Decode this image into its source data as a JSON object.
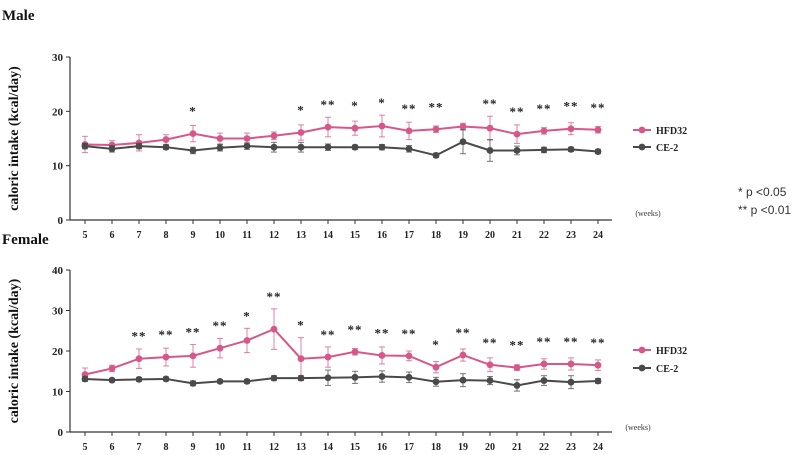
{
  "significance_legend": {
    "single": "*  p <0.05",
    "double": "** p <0.01"
  },
  "colors": {
    "hfd": "#d6578a",
    "ce": "#4a4a4a",
    "axis": "#333333"
  },
  "chart_data": [
    {
      "type": "line",
      "title": "Male",
      "ylabel": "caloric intake (kcal/day)",
      "xlabel": "(weeks)",
      "ylim": [
        0,
        30
      ],
      "yticks": [
        0,
        10,
        20,
        30
      ],
      "categories": [
        "5",
        "6",
        "7",
        "8",
        "9",
        "10",
        "11",
        "12",
        "13",
        "14",
        "15",
        "16",
        "17",
        "18",
        "19",
        "20",
        "21",
        "22",
        "23",
        "24"
      ],
      "significance": [
        "",
        "",
        "",
        "",
        "*",
        "",
        "",
        "",
        "*",
        "**",
        "*",
        "*",
        "**",
        "**",
        "",
        "**",
        "**",
        "**",
        "**",
        "**"
      ],
      "series": [
        {
          "name": "HFD32",
          "color": "#d6578a",
          "values": [
            13.9,
            13.8,
            14.2,
            14.8,
            15.9,
            15.0,
            15.0,
            15.5,
            16.1,
            17.1,
            16.9,
            17.3,
            16.4,
            16.7,
            17.2,
            16.9,
            15.8,
            16.4,
            16.8,
            16.6
          ],
          "errors": [
            1.5,
            0.8,
            1.5,
            0.9,
            1.5,
            1.0,
            1.0,
            0.7,
            1.4,
            1.8,
            1.3,
            2.0,
            1.6,
            0.6,
            0.6,
            2.2,
            1.7,
            0.6,
            1.1,
            0.6
          ]
        },
        {
          "name": "CE-2",
          "color": "#4a4a4a",
          "values": [
            13.6,
            13.1,
            13.6,
            13.4,
            12.8,
            13.3,
            13.6,
            13.4,
            13.4,
            13.4,
            13.4,
            13.4,
            13.1,
            11.9,
            14.4,
            12.8,
            12.8,
            12.9,
            13.0,
            12.6
          ],
          "errors": [
            0.5,
            0.6,
            0.5,
            0.4,
            0.6,
            0.6,
            0.6,
            0.9,
            0.9,
            0.6,
            0.4,
            0.5,
            0.6,
            0.4,
            2.2,
            2.0,
            0.8,
            0.5,
            0.4,
            0.4
          ]
        }
      ]
    },
    {
      "type": "line",
      "title": "Female",
      "ylabel": "caloric intake (kcal/day)",
      "xlabel": "(weeks)",
      "ylim": [
        0,
        40
      ],
      "yticks": [
        0,
        10,
        20,
        30,
        40
      ],
      "categories": [
        "5",
        "6",
        "7",
        "8",
        "9",
        "10",
        "11",
        "12",
        "13",
        "14",
        "15",
        "16",
        "17",
        "18",
        "19",
        "20",
        "21",
        "22",
        "23",
        "24"
      ],
      "significance": [
        "",
        "",
        "**",
        "**",
        "**",
        "**",
        "*",
        "**",
        "*",
        "**",
        "**",
        "**",
        "**",
        "*",
        "**",
        "**",
        "**",
        "**",
        "**",
        "**"
      ],
      "series": [
        {
          "name": "HFD32",
          "color": "#d6578a",
          "values": [
            14.2,
            15.7,
            18.1,
            18.5,
            18.8,
            20.7,
            22.6,
            25.4,
            18.1,
            18.5,
            19.8,
            18.9,
            18.8,
            16.0,
            19.0,
            16.6,
            15.9,
            16.8,
            16.8,
            16.5
          ],
          "errors": [
            1.6,
            0.8,
            2.4,
            2.2,
            2.8,
            2.4,
            3.0,
            5.0,
            5.2,
            2.5,
            0.8,
            2.1,
            1.2,
            1.4,
            1.5,
            1.7,
            0.7,
            1.3,
            1.5,
            1.3
          ]
        },
        {
          "name": "CE-2",
          "color": "#4a4a4a",
          "values": [
            13.1,
            12.8,
            13.0,
            13.1,
            12.0,
            12.5,
            12.5,
            13.3,
            13.3,
            13.4,
            13.5,
            13.7,
            13.5,
            12.4,
            12.8,
            12.7,
            11.5,
            12.7,
            12.3,
            12.6
          ],
          "errors": [
            0.6,
            0.4,
            0.5,
            0.5,
            0.6,
            0.4,
            0.5,
            0.6,
            0.6,
            1.9,
            1.5,
            1.4,
            1.3,
            1.1,
            1.6,
            1.0,
            1.4,
            1.2,
            1.6,
            0.6
          ]
        }
      ]
    }
  ]
}
